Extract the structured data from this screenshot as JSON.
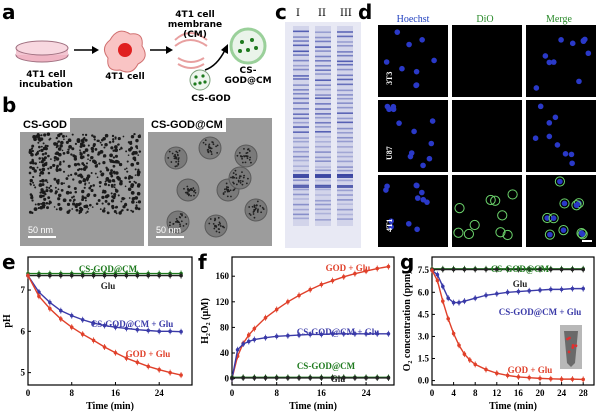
{
  "figure": {
    "panel_letters": [
      "a",
      "b",
      "c",
      "d",
      "e",
      "f",
      "g"
    ]
  },
  "schematic": {
    "dish_label": "4T1 cell\nincubation",
    "cell_label": "4T1 cell",
    "membrane_label": "4T1 cell\nmembrane (CM)",
    "csgod_label": "CS-GOD",
    "product_label": "CS-GOD@CM"
  },
  "tem": {
    "left_tag": "CS-GOD",
    "right_tag": "CS-GOD@CM",
    "scale_left": "50 nm",
    "scale_right": "50 nm"
  },
  "gel": {
    "lanes": [
      "I",
      "II",
      "III"
    ]
  },
  "confocal": {
    "columns": [
      "Hoechst",
      "DiO",
      "Merge"
    ],
    "rows": [
      "3T3",
      "U87",
      "4T1"
    ],
    "colors": {
      "hoechst": "#2a39c8",
      "dio": "#6cd46c",
      "header_blue": "#1f3fbf",
      "header_green": "#2a8a2a"
    }
  },
  "chart_data": [
    {
      "type": "line",
      "panel": "e",
      "xlabel": "Time (min)",
      "ylabel": "pH",
      "xlim": [
        0,
        30
      ],
      "ylim": [
        4.7,
        7.8
      ],
      "xticks": [
        0,
        8,
        16,
        24
      ],
      "yticks": [
        5,
        6,
        7
      ],
      "series": [
        {
          "name": "CS-GOD@CM",
          "color": "#1e7a1e",
          "x": [
            0,
            2,
            4,
            6,
            8,
            10,
            12,
            14,
            16,
            18,
            20,
            22,
            24,
            26,
            28
          ],
          "y": [
            7.4,
            7.4,
            7.4,
            7.4,
            7.4,
            7.4,
            7.4,
            7.4,
            7.4,
            7.4,
            7.4,
            7.4,
            7.4,
            7.4,
            7.4
          ]
        },
        {
          "name": "Glu",
          "color": "#222222",
          "x": [
            0,
            2,
            4,
            6,
            8,
            10,
            12,
            14,
            16,
            18,
            20,
            22,
            24,
            26,
            28
          ],
          "y": [
            7.35,
            7.35,
            7.35,
            7.35,
            7.35,
            7.35,
            7.35,
            7.35,
            7.35,
            7.35,
            7.35,
            7.35,
            7.35,
            7.35,
            7.35
          ]
        },
        {
          "name": "CS-GOD@CM + Glu",
          "color": "#3a3aa8",
          "x": [
            0,
            2,
            4,
            6,
            8,
            10,
            12,
            14,
            16,
            18,
            20,
            22,
            24,
            26,
            28
          ],
          "y": [
            7.35,
            6.95,
            6.7,
            6.5,
            6.38,
            6.28,
            6.2,
            6.14,
            6.1,
            6.07,
            6.04,
            6.02,
            6.0,
            6.0,
            5.99
          ]
        },
        {
          "name": "GOD + Glu",
          "color": "#e0402a",
          "x": [
            0,
            2,
            4,
            6,
            8,
            10,
            12,
            14,
            16,
            18,
            20,
            22,
            24,
            26,
            28
          ],
          "y": [
            7.35,
            6.85,
            6.55,
            6.3,
            6.1,
            5.93,
            5.78,
            5.62,
            5.48,
            5.35,
            5.25,
            5.15,
            5.07,
            5.0,
            4.94
          ]
        }
      ]
    },
    {
      "type": "line",
      "panel": "f",
      "xlabel": "Time (min)",
      "ylabel": "H₂O₂ (μM)",
      "xlim": [
        0,
        29
      ],
      "ylim": [
        -10,
        190
      ],
      "xticks": [
        0,
        8,
        16,
        24
      ],
      "yticks": [
        0,
        40,
        80,
        120,
        160
      ],
      "series": [
        {
          "name": "GOD + Glu",
          "color": "#e0402a",
          "x": [
            0,
            1,
            2,
            3,
            4,
            6,
            8,
            10,
            12,
            14,
            16,
            18,
            20,
            22,
            24,
            26,
            28
          ],
          "y": [
            0,
            35,
            55,
            68,
            78,
            95,
            108,
            120,
            130,
            139,
            147,
            153,
            159,
            164,
            168,
            172,
            175
          ]
        },
        {
          "name": "CS-GOD@CM + Glu",
          "color": "#3a3aa8",
          "x": [
            0,
            1,
            2,
            3,
            4,
            6,
            8,
            10,
            12,
            14,
            16,
            18,
            20,
            22,
            24,
            26,
            28
          ],
          "y": [
            0,
            45,
            54,
            58,
            61,
            64,
            66,
            67,
            68,
            69,
            69,
            70,
            70,
            70,
            70,
            70,
            70
          ]
        },
        {
          "name": "CS-GOD@CM",
          "color": "#1e7a1e",
          "x": [
            0,
            2,
            4,
            6,
            8,
            10,
            12,
            14,
            16,
            18,
            20,
            22,
            24,
            26,
            28
          ],
          "y": [
            2,
            2,
            2,
            2,
            2,
            2,
            2,
            2,
            2,
            2,
            2,
            2,
            2,
            2,
            2
          ]
        },
        {
          "name": "Glu",
          "color": "#222222",
          "x": [
            0,
            2,
            4,
            6,
            8,
            10,
            12,
            14,
            16,
            18,
            20,
            22,
            24,
            26,
            28
          ],
          "y": [
            1,
            1,
            1,
            1,
            1,
            1,
            1,
            1,
            1,
            1,
            1,
            1,
            1,
            1,
            1
          ]
        }
      ]
    },
    {
      "type": "line",
      "panel": "g",
      "xlabel": "Time (min)",
      "ylabel": "O₂ concentration (ppm)",
      "xlim": [
        0,
        30
      ],
      "ylim": [
        -0.3,
        8.4
      ],
      "xticks": [
        0,
        4,
        8,
        12,
        16,
        20,
        24,
        28
      ],
      "yticks": [
        0.0,
        1.5,
        3.0,
        4.5,
        6.0,
        7.5
      ],
      "series": [
        {
          "name": "CS-GOD@CM",
          "color": "#1e7a1e",
          "x": [
            0,
            2,
            4,
            6,
            8,
            10,
            12,
            14,
            16,
            18,
            20,
            22,
            24,
            26,
            28
          ],
          "y": [
            7.6,
            7.6,
            7.6,
            7.6,
            7.6,
            7.6,
            7.6,
            7.6,
            7.6,
            7.6,
            7.6,
            7.6,
            7.6,
            7.6,
            7.6
          ]
        },
        {
          "name": "Glu",
          "color": "#222222",
          "x": [
            0,
            2,
            4,
            6,
            8,
            10,
            12,
            14,
            16,
            18,
            20,
            22,
            24,
            26,
            28
          ],
          "y": [
            7.55,
            7.55,
            7.55,
            7.55,
            7.55,
            7.55,
            7.55,
            7.55,
            7.55,
            7.55,
            7.55,
            7.55,
            7.55,
            7.55,
            7.55
          ]
        },
        {
          "name": "CS-GOD@CM + Glu",
          "color": "#3a3aa8",
          "x": [
            0,
            1,
            2,
            3,
            4,
            5,
            6,
            8,
            10,
            12,
            14,
            16,
            18,
            20,
            22,
            24,
            26,
            28
          ],
          "y": [
            7.5,
            7.2,
            6.4,
            5.6,
            5.3,
            5.3,
            5.4,
            5.6,
            5.8,
            5.9,
            6.0,
            6.05,
            6.1,
            6.15,
            6.2,
            6.2,
            6.25,
            6.25
          ]
        },
        {
          "name": "GOD + Glu",
          "color": "#e0402a",
          "x": [
            0,
            1,
            2,
            3,
            4,
            5,
            6,
            7,
            8,
            10,
            12,
            14,
            16,
            18,
            20,
            22,
            24,
            26,
            28
          ],
          "y": [
            7.5,
            6.8,
            5.4,
            4.2,
            3.2,
            2.4,
            1.8,
            1.4,
            1.1,
            0.75,
            0.5,
            0.35,
            0.25,
            0.2,
            0.15,
            0.12,
            0.1,
            0.1,
            0.08
          ]
        }
      ]
    }
  ]
}
